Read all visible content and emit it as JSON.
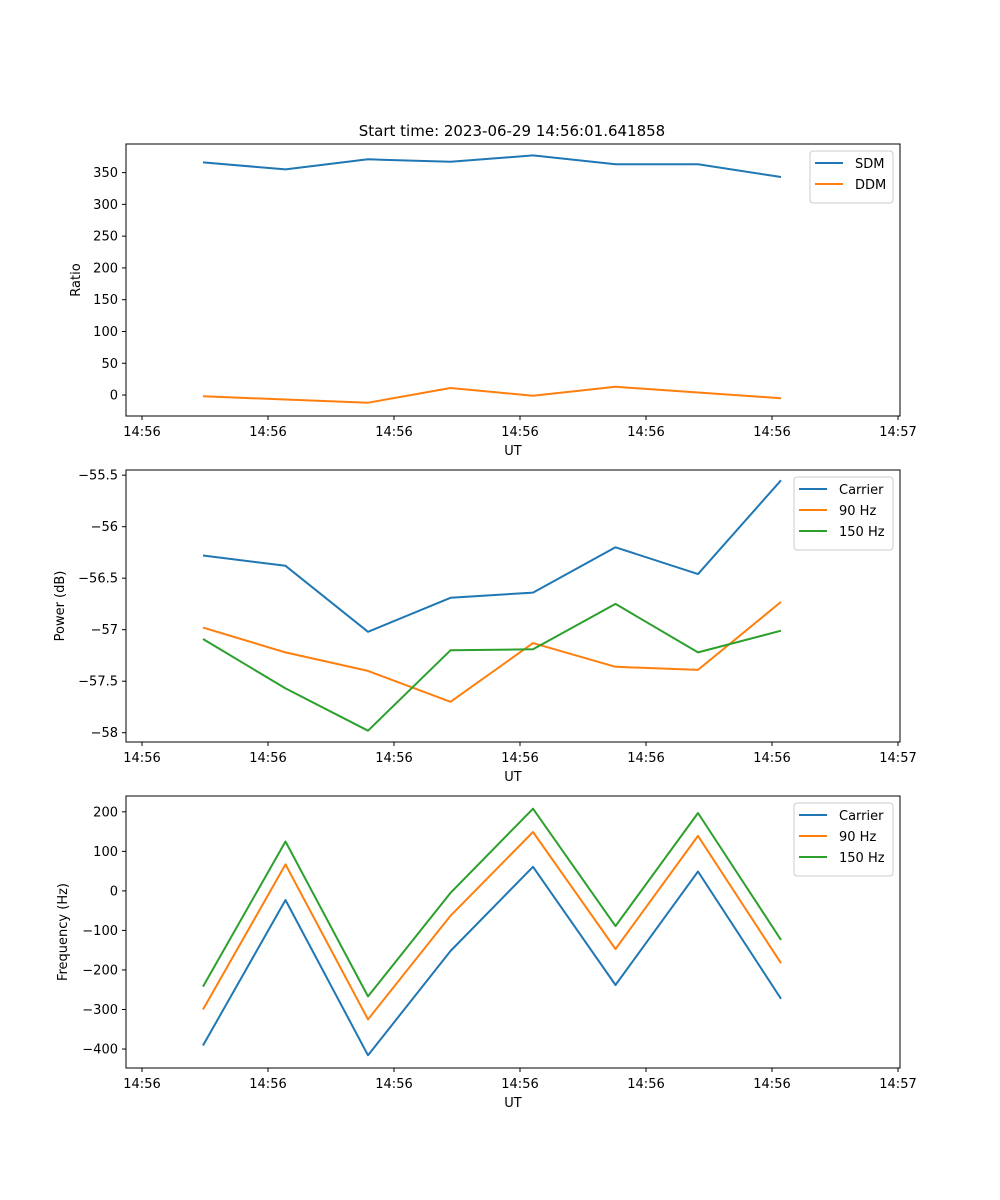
{
  "figure_title": "Start time: 2023-06-29 14:56:01.641858",
  "chart_data": [
    {
      "type": "line",
      "title": "Start time: 2023-06-29 14:56:01.641858",
      "xlabel": "UT",
      "ylabel": "Ratio",
      "x_tick_labels": [
        "14:56",
        "14:56",
        "14:56",
        "14:56",
        "14:56",
        "14:56",
        "14:56"
      ],
      "x_last_tick_label": "14:57",
      "y_ticks": [
        0,
        50,
        100,
        150,
        200,
        250,
        300,
        350
      ],
      "ylim": [
        -33,
        395
      ],
      "legend": "top-right",
      "grid": false,
      "series": [
        {
          "name": "SDM",
          "color": "#1f77b4",
          "values": [
            366,
            355,
            371,
            367,
            377,
            363,
            363,
            343
          ]
        },
        {
          "name": "DDM",
          "color": "#ff7f0e",
          "values": [
            -2,
            -7,
            -12,
            11,
            -1,
            13,
            4,
            -5
          ]
        }
      ]
    },
    {
      "type": "line",
      "title": "",
      "xlabel": "UT",
      "ylabel": "Power (dB)",
      "x_tick_labels": [
        "14:56",
        "14:56",
        "14:56",
        "14:56",
        "14:56",
        "14:56",
        "14:56"
      ],
      "x_last_tick_label": "14:57",
      "y_ticks": [
        -58.0,
        -57.5,
        -57.0,
        -56.5,
        -56.0,
        -55.5
      ],
      "ylim": [
        -58.09,
        -55.45
      ],
      "legend": "top-right",
      "grid": false,
      "series": [
        {
          "name": "Carrier",
          "color": "#1f77b4",
          "values": [
            -56.28,
            -56.38,
            -57.02,
            -56.69,
            -56.64,
            -56.2,
            -56.46,
            -55.55
          ]
        },
        {
          "name": "90 Hz",
          "color": "#ff7f0e",
          "values": [
            -56.98,
            -57.22,
            -57.4,
            -57.7,
            -57.13,
            -57.36,
            -57.39,
            -56.73
          ]
        },
        {
          "name": "150 Hz",
          "color": "#2ca02c",
          "values": [
            -57.09,
            -57.57,
            -57.98,
            -57.2,
            -57.19,
            -56.75,
            -57.22,
            -57.01
          ]
        }
      ]
    },
    {
      "type": "line",
      "title": "",
      "xlabel": "UT",
      "ylabel": "Frequency (Hz)",
      "x_tick_labels": [
        "14:56",
        "14:56",
        "14:56",
        "14:56",
        "14:56",
        "14:56",
        "14:56"
      ],
      "x_last_tick_label": "14:57",
      "y_ticks": [
        -400,
        -300,
        -200,
        -100,
        0,
        100,
        200
      ],
      "ylim": [
        -448,
        240
      ],
      "legend": "top-right",
      "grid": false,
      "series": [
        {
          "name": "Carrier",
          "color": "#1f77b4",
          "values": [
            -391,
            -23,
            -416,
            -152,
            61,
            -238,
            49,
            -273
          ]
        },
        {
          "name": "90 Hz",
          "color": "#ff7f0e",
          "values": [
            -300,
            67,
            -325,
            -63,
            149,
            -147,
            139,
            -183
          ]
        },
        {
          "name": "150 Hz",
          "color": "#2ca02c",
          "values": [
            -242,
            125,
            -267,
            -5,
            208,
            -89,
            197,
            -124
          ]
        }
      ]
    }
  ]
}
